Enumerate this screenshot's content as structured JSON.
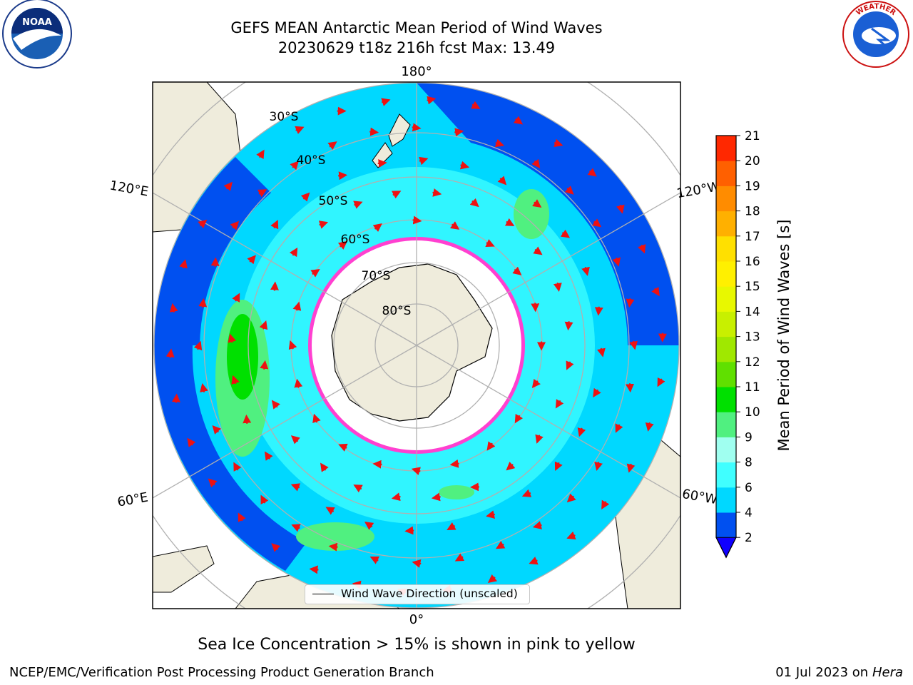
{
  "header": {
    "title_line1": "GEFS MEAN Antarctic Mean Period of Wind Waves",
    "title_line2": "20230629 t18z 216h fcst   Max: 13.49"
  },
  "logos": {
    "left": "NOAA",
    "right": "NATIONAL WEATHER SERVICE"
  },
  "map": {
    "projection": "south-polar-stereographic",
    "lon_labels": {
      "top": "180°",
      "bottom": "0°",
      "upper_left": "120°E",
      "upper_right": "120°W",
      "lower_left": "60°E",
      "lower_right": "60°W"
    },
    "lat_labels": [
      "30°S",
      "40°S",
      "50°S",
      "60°S",
      "70°S",
      "80°S"
    ],
    "legend_label": "Wind Wave Direction (unscaled)"
  },
  "colorbar": {
    "label": "Mean Period of Wind Waves [s]",
    "ticks": [
      "2",
      "4",
      "6",
      "8",
      "9",
      "10",
      "11",
      "12",
      "13",
      "14",
      "15",
      "16",
      "17",
      "18",
      "19",
      "20",
      "21"
    ],
    "colors": [
      "#0050f0",
      "#00d8ff",
      "#40ffff",
      "#a0fff0",
      "#50f080",
      "#00e000",
      "#60e000",
      "#a0e800",
      "#c8f000",
      "#e8f800",
      "#fff000",
      "#ffe000",
      "#ffb000",
      "#ff8c00",
      "#ff6000",
      "#ff2800",
      "#ff0000"
    ],
    "under_color": "#1000ff"
  },
  "caption": "Sea Ice Concentration > 15% is shown in pink to yellow",
  "footer": {
    "left": "NCEP/EMC/Verification Post Processing Product Generation Branch",
    "right_date": "01 Jul 2023 on ",
    "right_machine": "Hera"
  }
}
